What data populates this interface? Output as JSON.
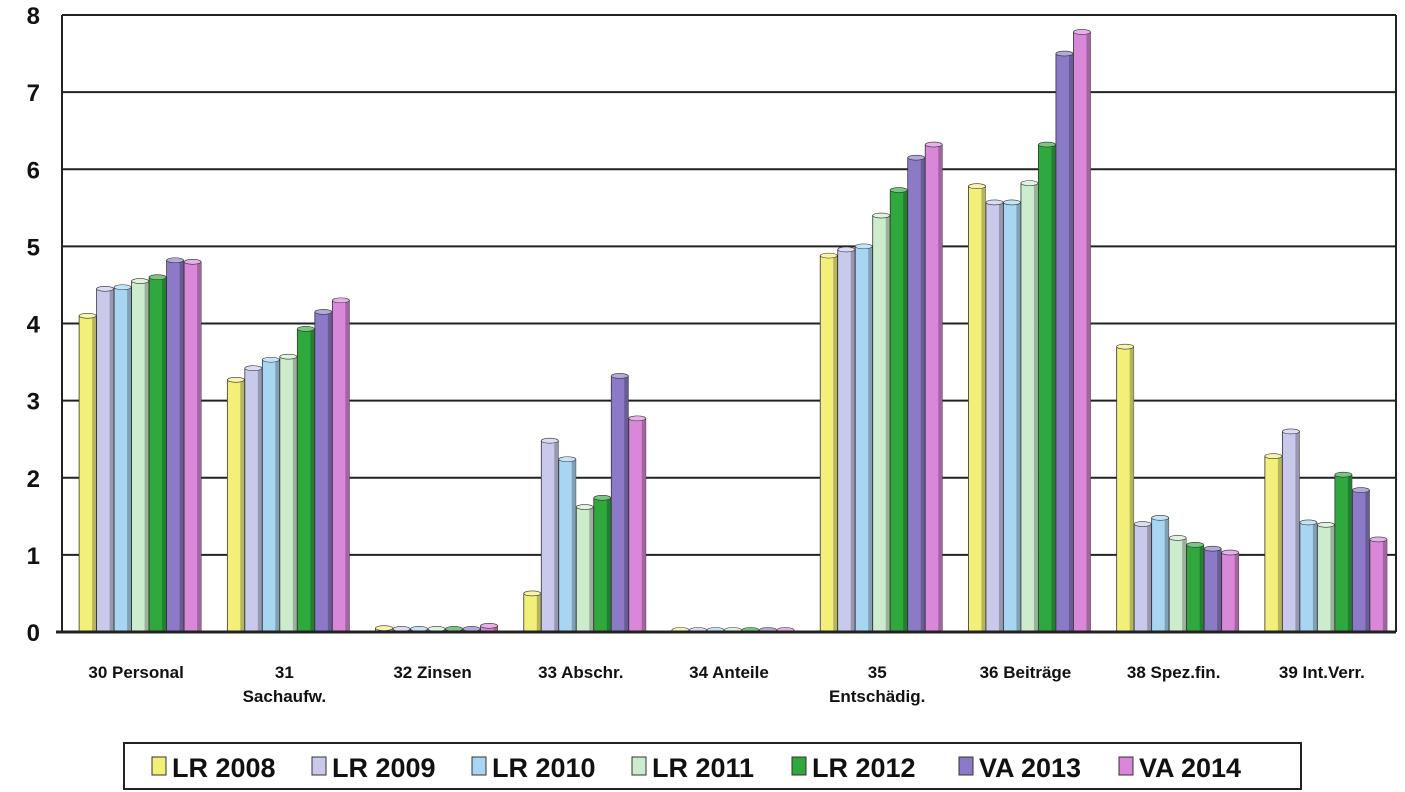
{
  "chart_data": {
    "type": "bar",
    "title": "",
    "xlabel": "",
    "ylabel": "",
    "ylim": [
      0,
      8
    ],
    "yticks": [
      "0",
      "1",
      "2",
      "3",
      "4",
      "5",
      "6",
      "7",
      "8"
    ],
    "grid": true,
    "legend_position": "bottom",
    "categories": [
      [
        "30 Personal"
      ],
      [
        "31",
        "Sachaufw."
      ],
      [
        "32 Zinsen"
      ],
      [
        "33 Abschr."
      ],
      [
        "34 Anteile"
      ],
      [
        "35",
        "Entschädig."
      ],
      [
        "36 Beiträge"
      ],
      [
        "38 Spez.fin."
      ],
      [
        "39 Int.Verr."
      ]
    ],
    "series": [
      {
        "name": "LR 2008",
        "color": "#f3f07a",
        "values": [
          4.1,
          3.27,
          0.05,
          0.5,
          0.0,
          4.88,
          5.78,
          3.7,
          2.28
        ]
      },
      {
        "name": "LR 2009",
        "color": "#c9c9ec",
        "values": [
          4.45,
          3.42,
          0.04,
          2.48,
          0.0,
          4.96,
          5.57,
          1.4,
          2.6
        ]
      },
      {
        "name": "LR 2010",
        "color": "#a8d6f2",
        "values": [
          4.47,
          3.53,
          0.04,
          2.24,
          0.0,
          5.0,
          5.57,
          1.48,
          1.42
        ]
      },
      {
        "name": "LR 2011",
        "color": "#cdeccd",
        "values": [
          4.55,
          3.57,
          0.04,
          1.62,
          0.0,
          5.4,
          5.82,
          1.22,
          1.39
        ]
      },
      {
        "name": "LR 2012",
        "color": "#2fa83e",
        "values": [
          4.6,
          3.93,
          0.04,
          1.74,
          0.0,
          5.73,
          6.32,
          1.13,
          2.04
        ]
      },
      {
        "name": "VA 2013",
        "color": "#8c7ac8",
        "values": [
          4.82,
          4.15,
          0.04,
          3.32,
          0.0,
          6.15,
          7.5,
          1.08,
          1.84
        ]
      },
      {
        "name": "VA 2014",
        "color": "#d987d8",
        "values": [
          4.8,
          4.3,
          0.08,
          2.77,
          0.0,
          6.32,
          7.78,
          1.03,
          1.2
        ]
      }
    ]
  }
}
